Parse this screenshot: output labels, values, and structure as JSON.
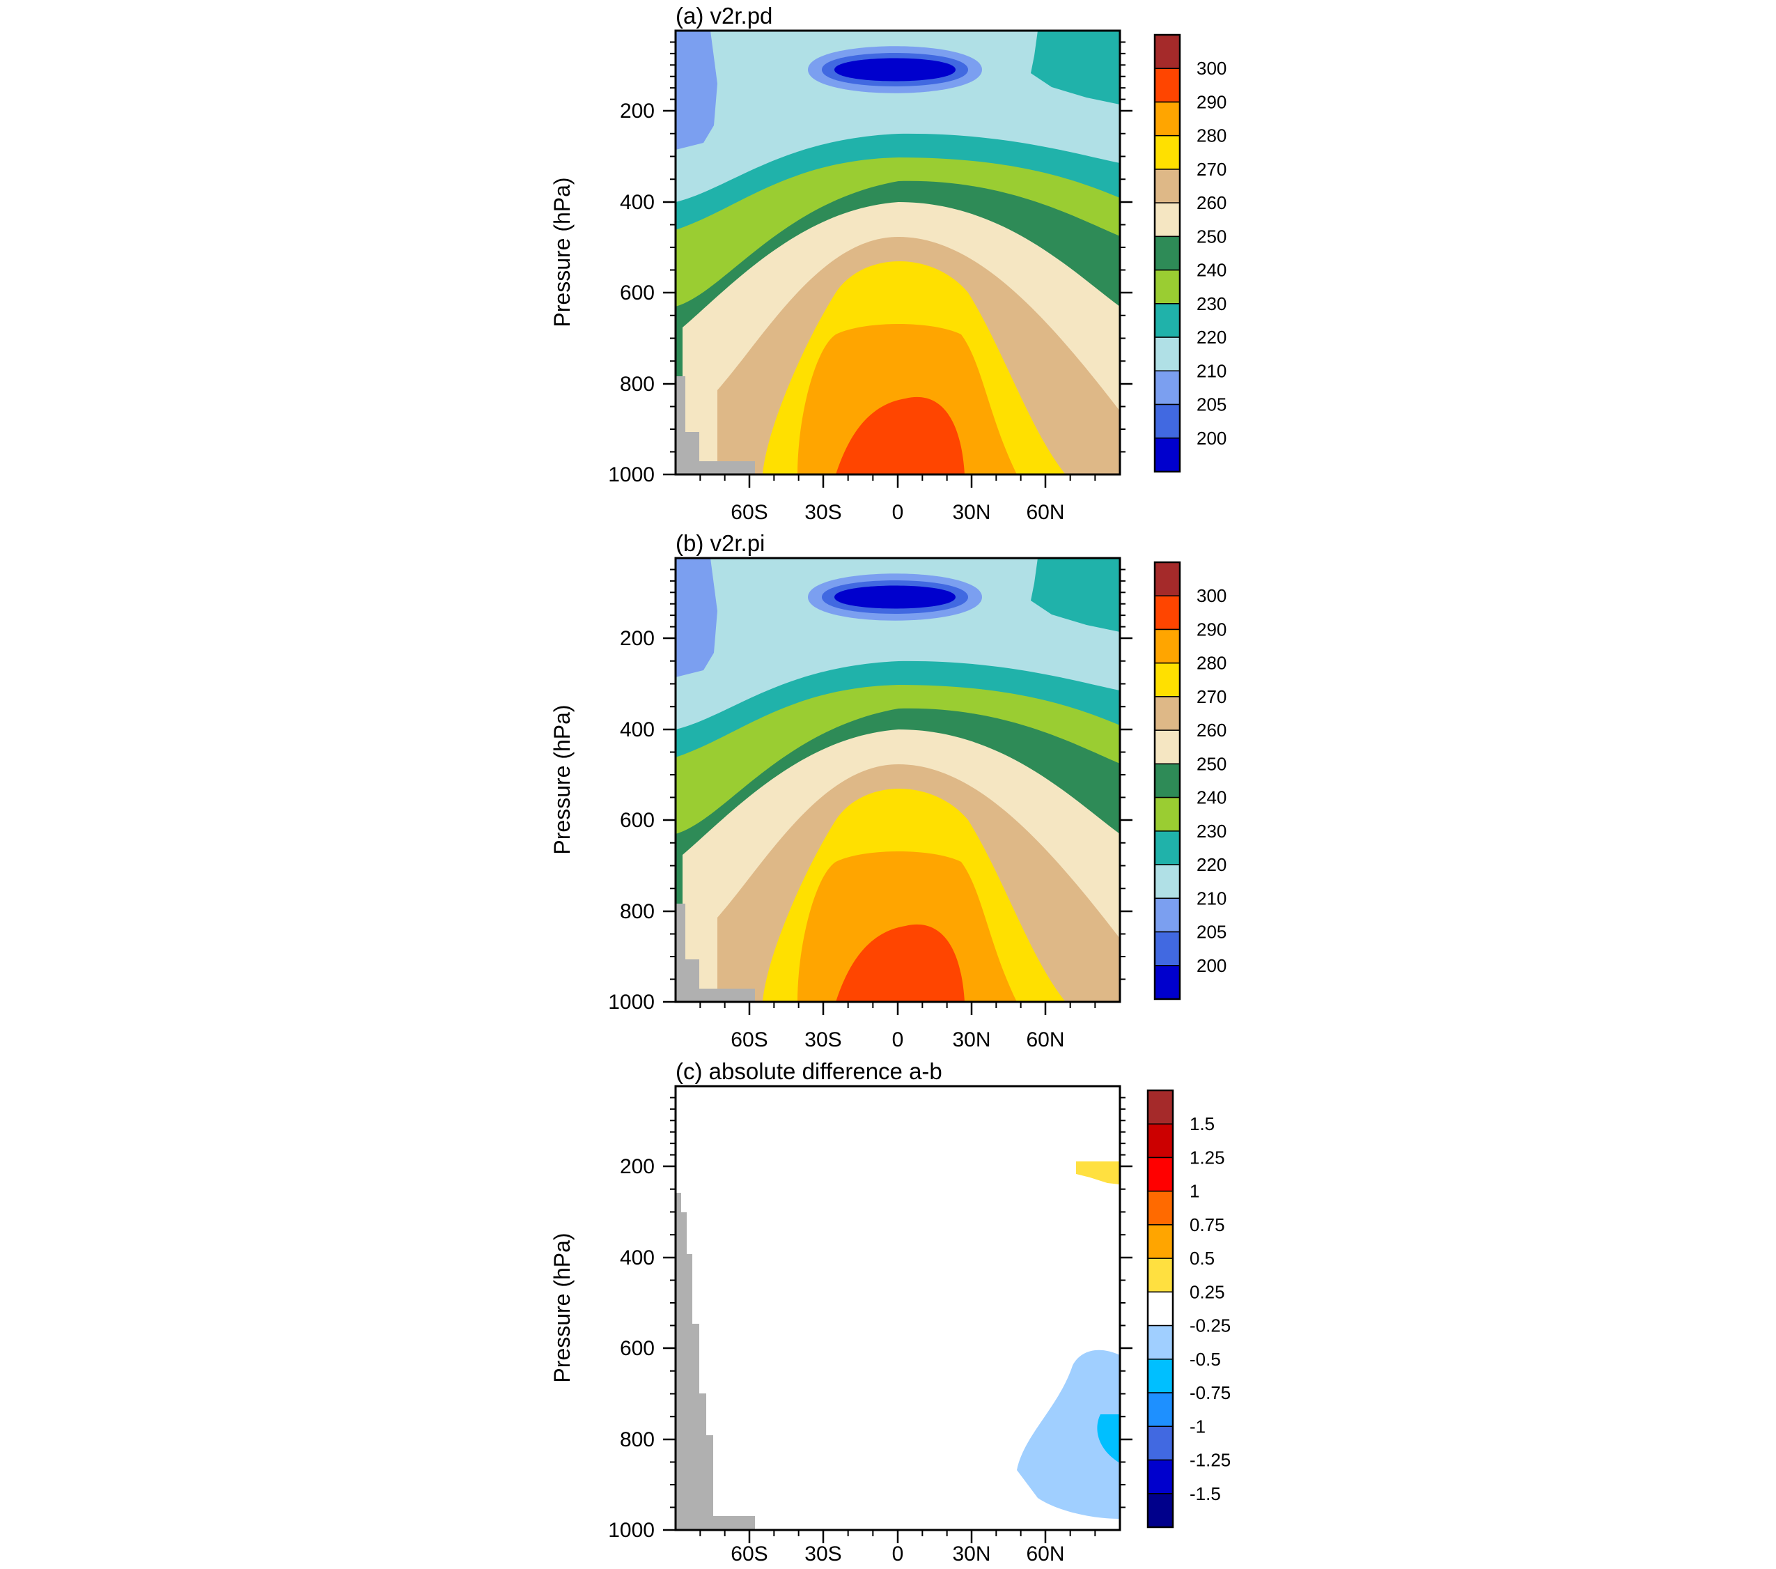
{
  "chart_data": [
    {
      "type": "heatmap",
      "title": "(a) v2r.pd",
      "ylabel": "Pressure (hPa)",
      "xlabel": "",
      "x_ticks": [
        "60S",
        "30S",
        "0",
        "30N",
        "60N"
      ],
      "y_ticks": [
        "200",
        "400",
        "600",
        "800",
        "1000"
      ],
      "ylim": [
        1000,
        30
      ],
      "xlim": [
        -90,
        90
      ],
      "field": "temperature",
      "colorbar_labels": [
        "300",
        "290",
        "280",
        "270",
        "260",
        "250",
        "240",
        "230",
        "220",
        "210",
        "205",
        "200"
      ],
      "colorbar_colors": [
        "#a52a2a",
        "#ff4500",
        "#ffa500",
        "#ffe000",
        "#deb887",
        "#f5e6c2",
        "#2e8b57",
        "#9acd32",
        "#20b2aa",
        "#b0e0e6",
        "#7b9ff0",
        "#4169e1",
        "#0000cd"
      ]
    },
    {
      "type": "heatmap",
      "title": "(b) v2r.pi",
      "ylabel": "Pressure (hPa)",
      "xlabel": "",
      "x_ticks": [
        "60S",
        "30S",
        "0",
        "30N",
        "60N"
      ],
      "y_ticks": [
        "200",
        "400",
        "600",
        "800",
        "1000"
      ],
      "ylim": [
        1000,
        30
      ],
      "xlim": [
        -90,
        90
      ],
      "field": "temperature",
      "colorbar_labels": [
        "300",
        "290",
        "280",
        "270",
        "260",
        "250",
        "240",
        "230",
        "220",
        "210",
        "205",
        "200"
      ],
      "colorbar_colors": [
        "#a52a2a",
        "#ff4500",
        "#ffa500",
        "#ffe000",
        "#deb887",
        "#f5e6c2",
        "#2e8b57",
        "#9acd32",
        "#20b2aa",
        "#b0e0e6",
        "#7b9ff0",
        "#4169e1",
        "#0000cd"
      ]
    },
    {
      "type": "heatmap",
      "title": "(c) absolute difference a-b",
      "ylabel": "Pressure (hPa)",
      "xlabel": "",
      "x_ticks": [
        "60S",
        "30S",
        "0",
        "30N",
        "60N"
      ],
      "y_ticks": [
        "200",
        "400",
        "600",
        "800",
        "1000"
      ],
      "ylim": [
        1000,
        30
      ],
      "xlim": [
        -90,
        90
      ],
      "field": "difference",
      "colorbar_labels": [
        "1.5",
        "1.25",
        "1",
        "0.75",
        "0.5",
        "0.25",
        "-0.25",
        "-0.5",
        "-0.75",
        "-1",
        "-1.25",
        "-1.5"
      ],
      "colorbar_colors": [
        "#a52a2a",
        "#cc0000",
        "#ff0000",
        "#ff6a00",
        "#ffa500",
        "#ffe040",
        "#ffffff",
        "#a0cfff",
        "#00bfff",
        "#1e90ff",
        "#4169e1",
        "#0000cd",
        "#00008b"
      ]
    }
  ]
}
